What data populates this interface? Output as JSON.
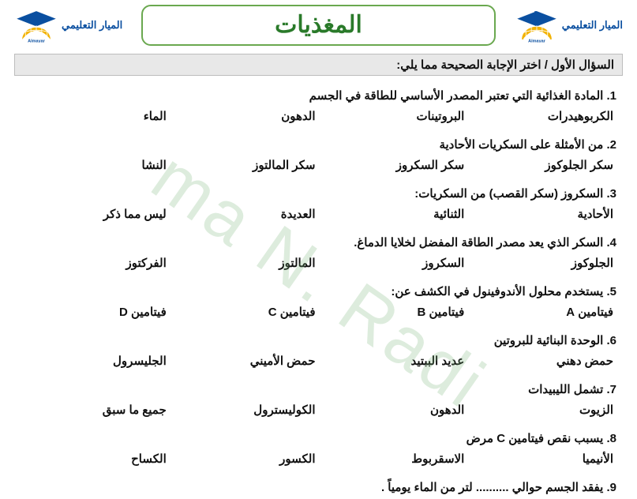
{
  "brand": {
    "name_ar": "الميار التعليمي",
    "name_en": "Almayar",
    "cap_color": "#0a4fa0",
    "globe_color": "#f2b200",
    "border_color": "#6aa84f"
  },
  "title": "المغذيات",
  "title_color": "#2a7a2a",
  "title_fontsize": 30,
  "instruction": "السؤال الأول / اختر الإجابة الصحيحة مما يلي:",
  "instruction_bg": "#e8e8e8",
  "body_fontsize": 15,
  "questions": [
    {
      "num": "1.",
      "text": "المادة الغذائية التي تعتبر المصدر الأساسي للطاقة في الجسم",
      "options": [
        "الكربوهيدرات",
        "البروتينات",
        "الدهون",
        "الماء"
      ]
    },
    {
      "num": "2.",
      "text": "من الأمثلة على السكريات الأحادية",
      "options": [
        "سكر الجلوكوز",
        "سكر السكروز",
        "سكر المالتوز",
        "النشا"
      ]
    },
    {
      "num": "3.",
      "text": "السكروز (سكر القصب) من السكريات:",
      "options": [
        "الأحادية",
        "الثنائية",
        "العديدة",
        "ليس مما ذكر"
      ]
    },
    {
      "num": "4.",
      "text": "السكر الذي يعد مصدر الطاقة المفضل لخلايا الدماغ.",
      "options": [
        "الجلوكوز",
        "السكروز",
        "المالتوز",
        "الفركتوز"
      ]
    },
    {
      "num": "5.",
      "text": "يستخدم محلول الأندوفينول في الكشف عن:",
      "options": [
        "فيتامين A",
        "فيتامين B",
        "فيتامين C",
        "فيتامين D"
      ]
    },
    {
      "num": "6.",
      "text": "الوحدة البنائية للبروتين",
      "options": [
        "حمض دهني",
        "عديد الببتيد",
        "حمض الأميني",
        "الجليسرول"
      ]
    },
    {
      "num": "7.",
      "text": "تشمل الليبيدات",
      "options": [
        "الزيوت",
        "الدهون",
        "الكوليسترول",
        "جميع ما سبق"
      ]
    },
    {
      "num": "8.",
      "text": "يسبب نقص فيتامين C مرض",
      "options": [
        "الأنيميا",
        "الاسقربوط",
        "الكسور",
        "الكساح"
      ]
    },
    {
      "num": "9.",
      "text": "يفقد الجسم حوالي .......... لتر من الماء يومياً .",
      "options": null
    }
  ],
  "watermark": "ma N. Radi"
}
